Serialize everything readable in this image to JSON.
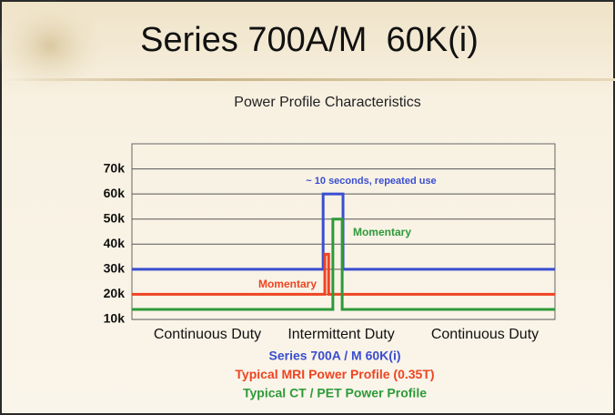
{
  "chart_data": {
    "type": "line",
    "title": "Series 700A/M  60K(i)",
    "subtitle": "Power Profile Characteristics",
    "regions": [
      "Continuous Duty",
      "Intermittent Duty",
      "Continuous Duty"
    ],
    "annotations": [
      "~ 10 seconds, repeated use",
      "Momentary",
      "Momentary"
    ],
    "xlim": [
      0,
      100
    ],
    "ylim": [
      10000,
      80000
    ],
    "yticks": [
      {
        "value": 10000,
        "label": "10k"
      },
      {
        "value": 20000,
        "label": "20k"
      },
      {
        "value": 30000,
        "label": "30k"
      },
      {
        "value": 40000,
        "label": "40k"
      },
      {
        "value": 50000,
        "label": "50k"
      },
      {
        "value": 60000,
        "label": "60k"
      },
      {
        "value": 70000,
        "label": "70k"
      }
    ],
    "grid": true,
    "series": [
      {
        "name": "Series 700A / M  60K(i)",
        "color": "#3a4ed0",
        "x": [
          0,
          45.2,
          45.2,
          49.9,
          49.9,
          100
        ],
        "values": [
          30000,
          30000,
          60000,
          60000,
          30000,
          30000
        ]
      },
      {
        "name": "Typical MRI Power Profile (0.35T)",
        "color": "#ee4422",
        "x": [
          0,
          45.6,
          45.6,
          46.5,
          46.5,
          100
        ],
        "values": [
          20000,
          20000,
          36000,
          36000,
          20000,
          20000
        ]
      },
      {
        "name": "Typical CT / PET Power Profile",
        "color": "#2e9a3a",
        "x": [
          0,
          47.5,
          47.5,
          49.7,
          49.7,
          100
        ],
        "values": [
          14000,
          14000,
          50000,
          50000,
          14000,
          14000
        ]
      }
    ]
  }
}
